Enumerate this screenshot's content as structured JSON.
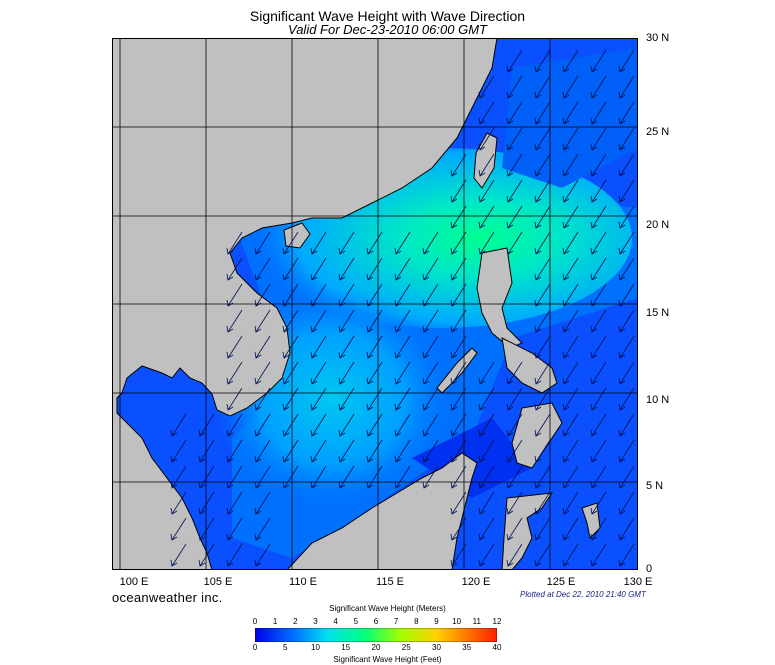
{
  "header": {
    "title": "Significant Wave Height with Wave Direction",
    "subtitle": "Valid For Dec-23-2010 06:00 GMT"
  },
  "map": {
    "lat_labels": [
      "30 N",
      "25 N",
      "20 N",
      "15 N",
      "10 N",
      "5 N",
      "0"
    ],
    "lon_labels": [
      "100 E",
      "105 E",
      "110 E",
      "115 E",
      "120 E",
      "125 E",
      "130 E"
    ],
    "extent": {
      "lon_min": 99,
      "lon_max": 130,
      "lat_min": 0,
      "lat_max": 30
    },
    "land_color": "#c0c0c0",
    "wave_direction_general": "from northeast"
  },
  "footer": {
    "brand": "oceanweather inc.",
    "plotted": "Plotted at Dec 22, 2010 21:40 GMT"
  },
  "colorbar": {
    "title_meters": "Significant Wave Height (Meters)",
    "title_feet": "Significant Wave Height (Feet)",
    "meters_ticks": [
      "0",
      "1",
      "2",
      "3",
      "4",
      "5",
      "6",
      "7",
      "8",
      "9",
      "10",
      "11",
      "12"
    ],
    "feet_ticks": [
      "0",
      "5",
      "10",
      "15",
      "20",
      "25",
      "30",
      "35",
      "40"
    ],
    "colors": [
      "#0000ee",
      "#0030ff",
      "#0078ff",
      "#00b4ff",
      "#00e0ee",
      "#00ffaa",
      "#40ff40",
      "#a0ff00",
      "#e0ff00",
      "#ffd000",
      "#ff8800",
      "#ff3000"
    ]
  }
}
